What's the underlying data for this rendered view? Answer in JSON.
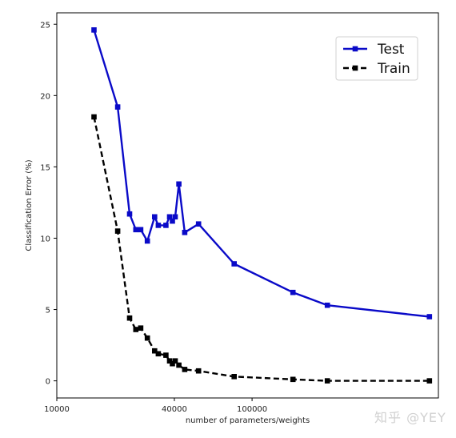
{
  "chart_data": {
    "type": "line",
    "title": "",
    "xlabel": "number of parameters/weights",
    "ylabel": "Classification Error (%)",
    "xscale": "log",
    "xlim": [
      10000,
      900000
    ],
    "ylim": [
      -1.2,
      25.8
    ],
    "grid": false,
    "legend_position": "top-right",
    "x_ticks": [
      {
        "value": 10000,
        "label": "10000"
      },
      {
        "value": 40000,
        "label": "40000"
      },
      {
        "value": 100000,
        "label": "100000"
      }
    ],
    "y_ticks": [
      {
        "value": 0,
        "label": "0"
      },
      {
        "value": 5,
        "label": "5"
      },
      {
        "value": 10,
        "label": "10"
      },
      {
        "value": 15,
        "label": "15"
      },
      {
        "value": 20,
        "label": "20"
      },
      {
        "value": 25,
        "label": "25"
      }
    ],
    "series": [
      {
        "name": "Test",
        "color": "#0a0ac8",
        "line_style": "solid",
        "marker": "square",
        "x": [
          15500,
          20500,
          23600,
          25400,
          26900,
          29100,
          31700,
          33100,
          36200,
          37800,
          39100,
          40400,
          42200,
          45200,
          53200,
          81000,
          162000,
          243000,
          810000
        ],
        "y": [
          24.6,
          19.2,
          11.7,
          10.6,
          10.6,
          9.8,
          11.5,
          10.9,
          10.9,
          11.5,
          11.2,
          11.5,
          13.8,
          10.4,
          11.0,
          8.2,
          6.2,
          5.3,
          4.5
        ]
      },
      {
        "name": "Train",
        "color": "#000000",
        "line_style": "dashed",
        "marker": "square",
        "x": [
          15500,
          20500,
          23600,
          25400,
          26900,
          29100,
          31700,
          33100,
          36200,
          37800,
          39100,
          40400,
          42200,
          45200,
          53200,
          81000,
          162000,
          243000,
          810000
        ],
        "y": [
          18.5,
          10.5,
          4.4,
          3.6,
          3.7,
          3.0,
          2.1,
          1.9,
          1.8,
          1.4,
          1.2,
          1.4,
          1.1,
          0.8,
          0.7,
          0.3,
          0.1,
          0.0,
          0.0
        ]
      }
    ]
  },
  "watermark": {
    "text": "知乎 @YEY"
  }
}
